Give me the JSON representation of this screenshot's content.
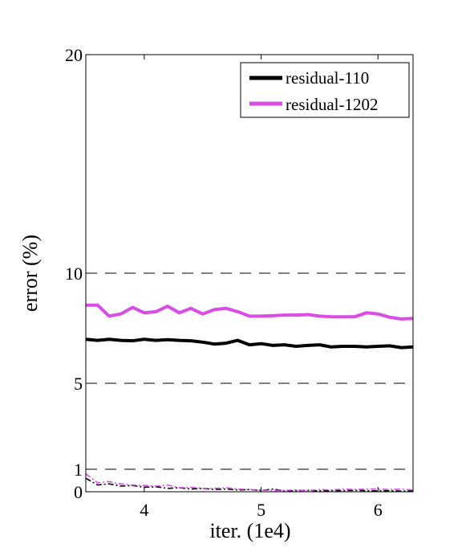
{
  "chart_data": {
    "type": "line",
    "xlabel": "iter. (1e4)",
    "ylabel": "error (%)",
    "xlim": [
      3.5,
      6.3
    ],
    "ylim": [
      0,
      20
    ],
    "y_scale": "piecewise",
    "y_scale_breakpoints": [
      0,
      1,
      5,
      10,
      20
    ],
    "xticks": [
      4,
      5,
      6
    ],
    "yticks": [
      0,
      1,
      5,
      10,
      20
    ],
    "grid": "horizontal dashed",
    "legend_position": "top-right",
    "series": [
      {
        "name": "residual-110",
        "style": "solid-bold",
        "color": "#000000",
        "x": [
          3.5,
          3.6,
          3.7,
          3.8,
          3.9,
          4.0,
          4.1,
          4.2,
          4.3,
          4.4,
          4.5,
          4.6,
          4.7,
          4.8,
          4.9,
          5.0,
          5.1,
          5.2,
          5.3,
          5.4,
          5.5,
          5.6,
          5.7,
          5.8,
          5.9,
          6.0,
          6.1,
          6.2,
          6.3
        ],
        "y": [
          7.0,
          6.95,
          7.0,
          6.95,
          6.93,
          7.0,
          6.95,
          6.98,
          6.95,
          6.93,
          6.87,
          6.78,
          6.82,
          6.95,
          6.75,
          6.8,
          6.72,
          6.75,
          6.68,
          6.72,
          6.75,
          6.65,
          6.68,
          6.68,
          6.65,
          6.68,
          6.7,
          6.62,
          6.65
        ]
      },
      {
        "name": "residual-1202",
        "style": "solid-bold",
        "color": "#d94de6",
        "x": [
          3.5,
          3.6,
          3.7,
          3.8,
          3.9,
          4.0,
          4.1,
          4.2,
          4.3,
          4.4,
          4.5,
          4.6,
          4.7,
          4.8,
          4.9,
          5.0,
          5.1,
          5.2,
          5.3,
          5.4,
          5.5,
          5.6,
          5.7,
          5.8,
          5.9,
          6.0,
          6.1,
          6.2,
          6.3
        ],
        "y": [
          8.55,
          8.55,
          8.05,
          8.15,
          8.45,
          8.2,
          8.25,
          8.5,
          8.2,
          8.4,
          8.15,
          8.35,
          8.4,
          8.25,
          8.05,
          8.05,
          8.07,
          8.1,
          8.1,
          8.12,
          8.05,
          8.02,
          8.02,
          8.02,
          8.2,
          8.15,
          8.0,
          7.92,
          7.95
        ]
      },
      {
        "name": "",
        "style": "dash-dot",
        "color": "#000000",
        "x": [
          3.5,
          3.6,
          3.7,
          3.8,
          3.9,
          4.0,
          4.1,
          4.2,
          4.3,
          4.4,
          4.5,
          4.6,
          4.7,
          4.8,
          4.9,
          5.0,
          5.1,
          5.2,
          5.3,
          5.4,
          5.5,
          5.6,
          5.7,
          5.8,
          5.9,
          6.0,
          6.1,
          6.2,
          6.3
        ],
        "y": [
          0.6,
          0.3,
          0.35,
          0.25,
          0.28,
          0.2,
          0.22,
          0.15,
          0.18,
          0.12,
          0.15,
          0.1,
          0.12,
          0.08,
          0.1,
          0.05,
          0.12,
          0.03,
          0.05,
          0.06,
          0.04,
          0.05,
          0.05,
          0.06,
          0.05,
          0.04,
          0.05,
          0.03,
          0.04
        ]
      },
      {
        "name": "",
        "style": "dash-dot",
        "color": "#d94de6",
        "x": [
          3.5,
          3.6,
          3.7,
          3.8,
          3.9,
          4.0,
          4.1,
          4.2,
          4.3,
          4.4,
          4.5,
          4.6,
          4.7,
          4.8,
          4.9,
          5.0,
          5.1,
          5.2,
          5.3,
          5.4,
          5.5,
          5.6,
          5.7,
          5.8,
          5.9,
          6.0,
          6.1,
          6.2,
          6.3
        ],
        "y": [
          0.8,
          0.4,
          0.45,
          0.35,
          0.3,
          0.28,
          0.25,
          0.3,
          0.18,
          0.2,
          0.15,
          0.15,
          0.18,
          0.12,
          0.1,
          0.08,
          0.05,
          0.06,
          0.08,
          0.05,
          0.1,
          0.08,
          0.12,
          0.1,
          0.12,
          0.12,
          0.1,
          0.12,
          0.08
        ]
      }
    ]
  }
}
